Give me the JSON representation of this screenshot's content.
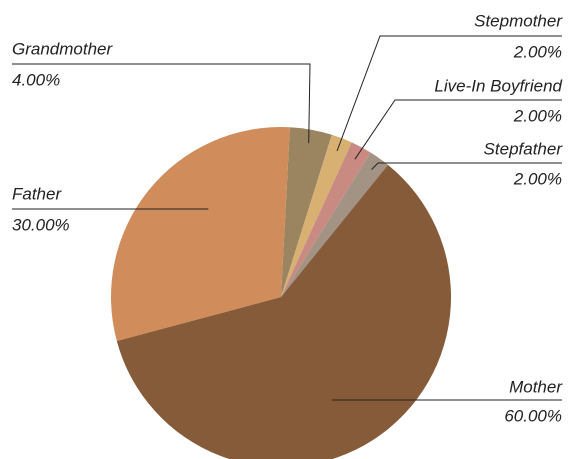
{
  "chart_data": {
    "type": "pie",
    "categories": [
      "Grandmother",
      "Stepmother",
      "Live-In Boyfriend",
      "Stepfather",
      "Mother",
      "Father"
    ],
    "values": [
      4,
      2,
      2,
      2,
      60,
      30
    ],
    "value_labels": [
      "4.00%",
      "2.00%",
      "2.00%",
      "2.00%",
      "60.00%",
      "30.00%"
    ],
    "colors": [
      "#9a8560",
      "#d8b071",
      "#c98a82",
      "#a39384",
      "#855b3a",
      "#d08c5a"
    ]
  }
}
